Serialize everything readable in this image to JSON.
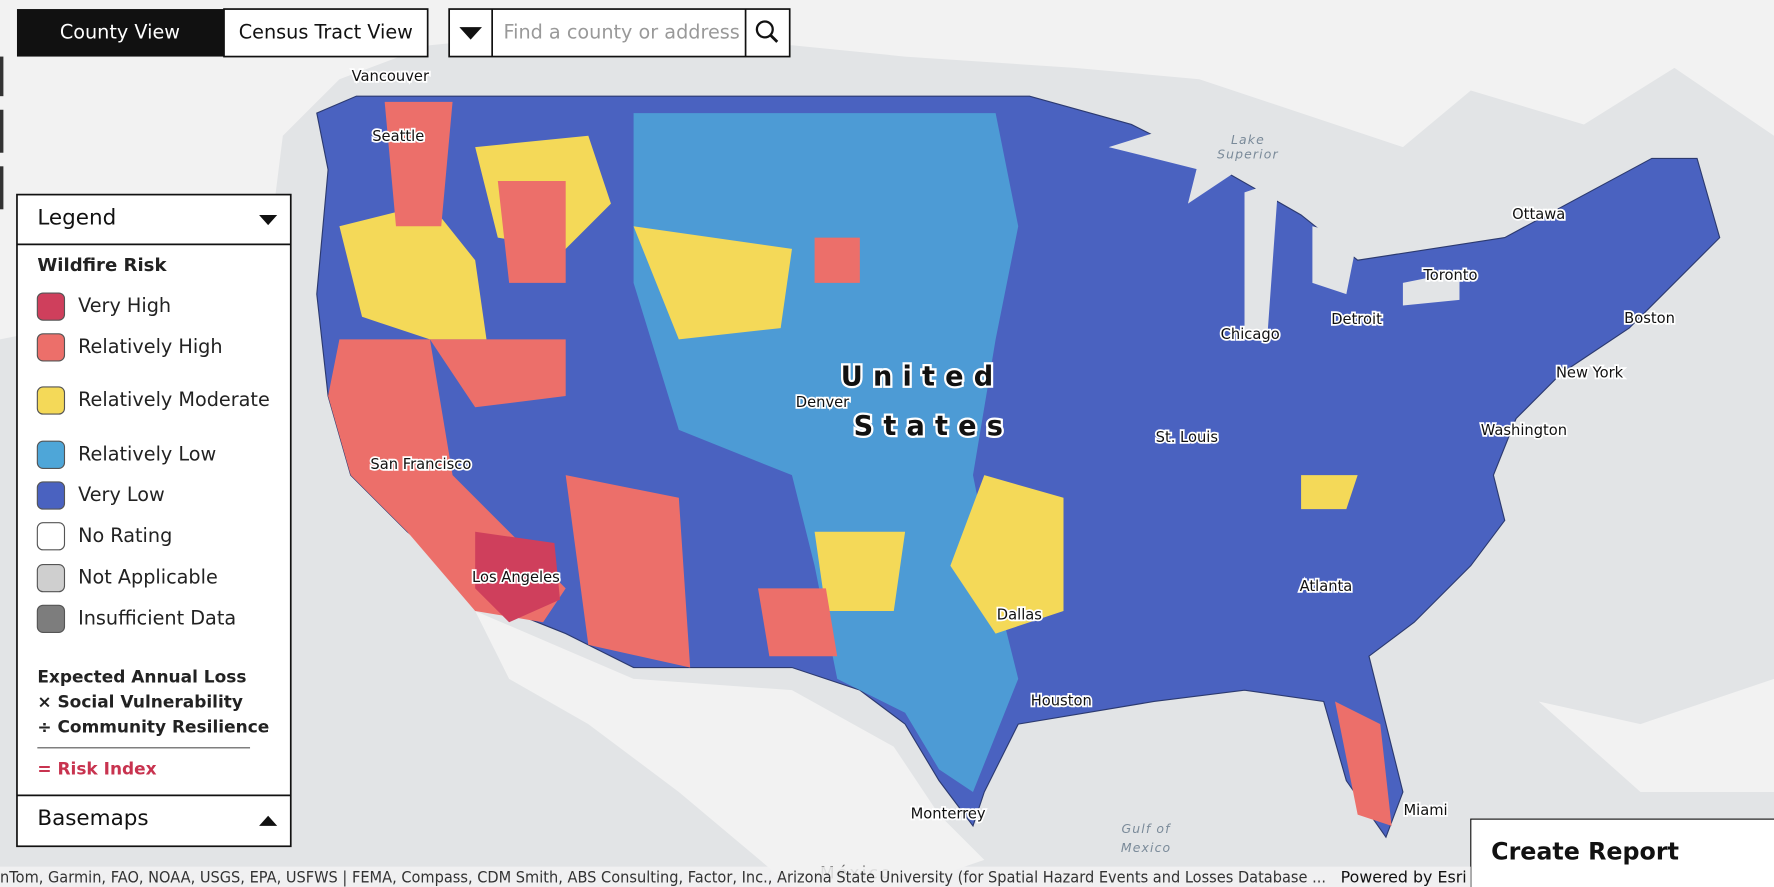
{
  "toolbar": {
    "tabs": [
      "County View",
      "Census Tract View"
    ],
    "search_placeholder": "Find a county or address"
  },
  "legend": {
    "title": "Legend",
    "section": "Wildfire Risk",
    "items": [
      {
        "label": "Very High",
        "color": "#cf3f5c"
      },
      {
        "label": "Relatively High",
        "color": "#ec6f6a"
      },
      {
        "label": "Relatively Moderate",
        "color": "#f4d958"
      },
      {
        "label": "Relatively Low",
        "color": "#4ea6d8"
      },
      {
        "label": "Very Low",
        "color": "#4a62c0"
      },
      {
        "label": "No Rating",
        "color": "#ffffff"
      },
      {
        "label": "Not Applicable",
        "color": "#cfcfcf"
      },
      {
        "label": "Insufficient Data",
        "color": "#7d7d7d"
      }
    ],
    "formula": [
      "Expected Annual Loss",
      "× Social Vulnerability",
      "÷ Community Resilience"
    ],
    "result": "= Risk Index"
  },
  "basemaps": "Basemaps",
  "create_report": "Create Report",
  "attribution": "nTom, Garmin, FAO, NOAA, USGS, EPA, USFWS | FEMA, Compass, CDM Smith, ABS Consulting, Factor, Inc., Arizona State University (for Spatial Hazard Events and Losses Database ...",
  "powered_by": "Powered by Esri",
  "map_labels": [
    "Vancouver",
    "Seattle",
    "Lake",
    "Superior",
    "Ottawa",
    "Toronto",
    "Chicago",
    "Detroit",
    "Boston",
    "New York",
    "Washington",
    "Denver",
    "St. Louis",
    "San Francisco",
    "Los Angeles",
    "Atlanta",
    "Dallas",
    "Houston",
    "Miami",
    "Monterrey",
    "Gulf of",
    "Mexico",
    "México",
    "United",
    "States"
  ]
}
